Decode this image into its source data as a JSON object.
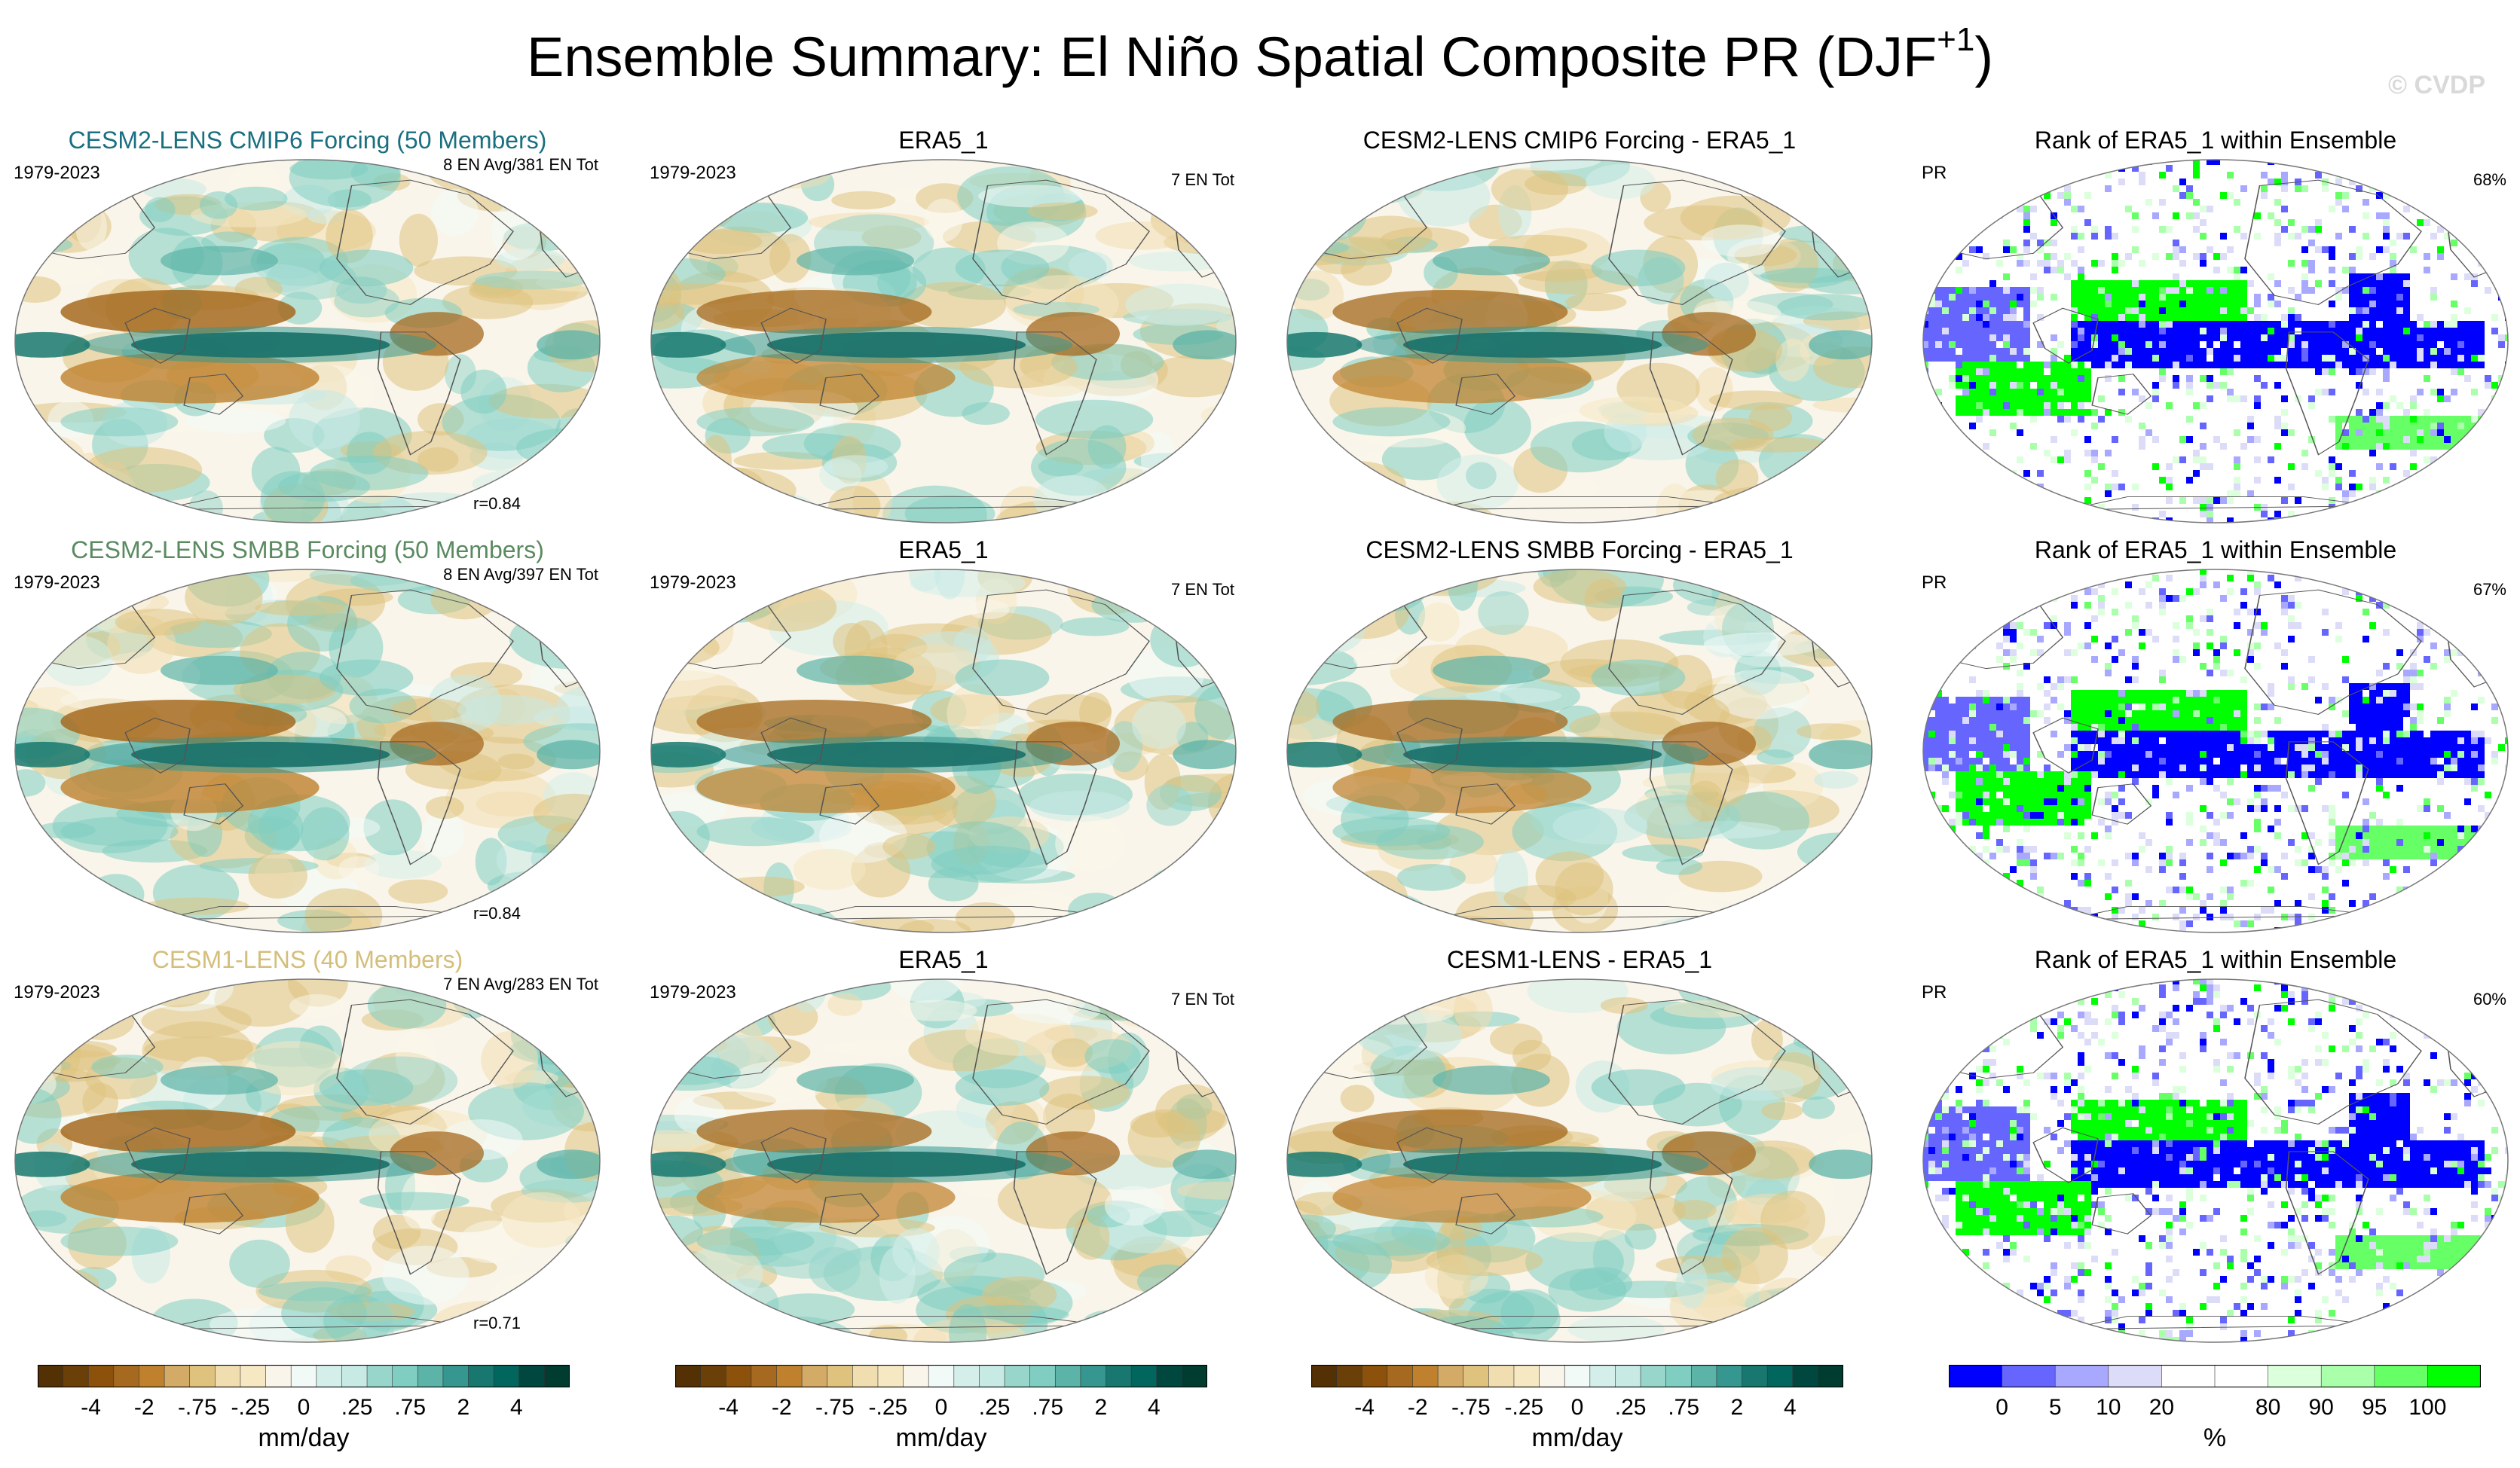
{
  "title": {
    "main": "Ensemble Summary: El Niño Spatial Composite PR (DJF",
    "superscript": "+1",
    "close": ")"
  },
  "watermark": "© CVDP",
  "colors": {
    "diverging": [
      "#543005",
      "#6b3f08",
      "#8c510a",
      "#a56a20",
      "#bf812d",
      "#d4ab66",
      "#dfc27d",
      "#f0ddb0",
      "#f6e8c3",
      "#faf5ea",
      "#f2faf8",
      "#d4eeea",
      "#c7eae5",
      "#98d5ca",
      "#80cdc1",
      "#5cb3a8",
      "#35978f",
      "#18786f",
      "#01665e",
      "#00483f",
      "#003c30"
    ],
    "rank": [
      "#0000ff",
      "#6666ff",
      "#a8a8ff",
      "#dcdcf8",
      "#ffffff",
      "#ffffff",
      "#dcffdc",
      "#aaffaa",
      "#66ff66",
      "#00ff00"
    ],
    "model_title": [
      "#1a6f80",
      "#5a8a60",
      "#d4be7a"
    ]
  },
  "rows": [
    {
      "model": {
        "title": "CESM2-LENS CMIP6 Forcing (50 Members)",
        "years": "1979-2023",
        "count": "8 EN Avg/381 EN Tot",
        "corr": "r=0.84"
      },
      "obs": {
        "title": "ERA5_1",
        "years": "1979-2023",
        "count": "7 EN Tot"
      },
      "diff": {
        "title": "CESM2-LENS CMIP6 Forcing - ERA5_1"
      },
      "rank": {
        "title": "Rank of ERA5_1 within Ensemble",
        "var": "PR",
        "pct": "68%"
      }
    },
    {
      "model": {
        "title": "CESM2-LENS SMBB Forcing (50 Members)",
        "years": "1979-2023",
        "count": "8 EN Avg/397 EN Tot",
        "corr": "r=0.84"
      },
      "obs": {
        "title": "ERA5_1",
        "years": "1979-2023",
        "count": "7 EN Tot"
      },
      "diff": {
        "title": "CESM2-LENS SMBB Forcing - ERA5_1"
      },
      "rank": {
        "title": "Rank of ERA5_1 within Ensemble",
        "var": "PR",
        "pct": "67%"
      }
    },
    {
      "model": {
        "title": "CESM1-LENS (40 Members)",
        "years": "1979-2023",
        "count": "7 EN Avg/283 EN Tot",
        "corr": "r=0.71"
      },
      "obs": {
        "title": "ERA5_1",
        "years": "1979-2023",
        "count": "7 EN Tot"
      },
      "diff": {
        "title": "CESM1-LENS - ERA5_1"
      },
      "rank": {
        "title": "Rank of ERA5_1 within Ensemble",
        "var": "PR",
        "pct": "60%"
      }
    }
  ],
  "colorbars": [
    {
      "ticks": [
        "-4",
        "-2",
        "-.75",
        "-.25",
        "0",
        ".25",
        ".75",
        "2",
        "4"
      ],
      "unit": "mm/day"
    },
    {
      "ticks": [
        "-4",
        "-2",
        "-.75",
        "-.25",
        "0",
        ".25",
        ".75",
        "2",
        "4"
      ],
      "unit": "mm/day"
    },
    {
      "ticks": [
        "-4",
        "-2",
        "-.75",
        "-.25",
        "0",
        ".25",
        ".75",
        "2",
        "4"
      ],
      "unit": "mm/day"
    },
    {
      "ticks": [
        "0",
        "5",
        "10",
        "20",
        "80",
        "90",
        "95",
        "100"
      ],
      "unit": "%"
    }
  ]
}
